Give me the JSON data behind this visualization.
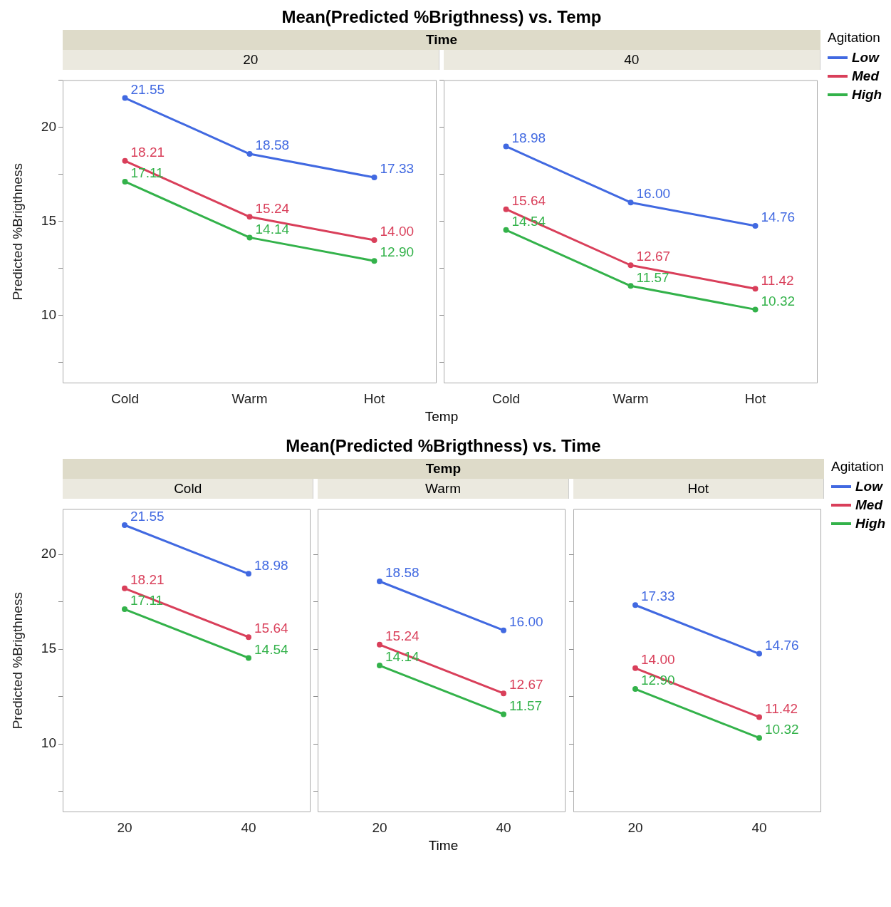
{
  "chart_data": [
    {
      "type": "line",
      "title": "Mean(Predicted %Brigthness) vs. Temp",
      "subtitle": "Time",
      "annotations": [
        "20"
      ],
      "xlabel": "Temp",
      "ylabel": "Predicted %Brigthness",
      "categories": [
        "Cold",
        "Warm",
        "Hot"
      ],
      "ylim": [
        6.4,
        22.5
      ],
      "yticks": [
        {
          "value": 7.5,
          "label": null
        },
        10,
        {
          "value": 12.5,
          "label": null
        },
        15,
        {
          "value": 17.5,
          "label": null
        },
        20,
        {
          "value": 22.5,
          "label": null
        }
      ],
      "marker": "circle",
      "series": [
        {
          "color": "#4169e1",
          "values": [
            21.55,
            18.58,
            17.33
          ],
          "value_labels": [
            "21.55",
            "18.58",
            "17.33"
          ]
        },
        {
          "color": "#d93f5a",
          "values": [
            18.21,
            15.24,
            14.0
          ],
          "value_labels": [
            "18.21",
            "15.24",
            "14.00"
          ]
        },
        {
          "color": "#33b24a",
          "values": [
            17.11,
            14.14,
            12.9
          ],
          "value_labels": [
            "17.11",
            "14.14",
            "12.90"
          ]
        }
      ]
    },
    {
      "type": "line",
      "annotations": [
        "40"
      ],
      "categories": [
        "Cold",
        "Warm",
        "Hot"
      ],
      "ylim": [
        6.4,
        22.5
      ],
      "yticks": [
        {
          "value": 7.5,
          "label": null
        },
        10,
        {
          "value": 12.5,
          "label": null
        },
        15,
        {
          "value": 17.5,
          "label": null
        },
        20,
        {
          "value": 22.5,
          "label": null
        }
      ],
      "tick_labels": "x",
      "marker": "circle",
      "legend": "right",
      "legend_title": "Agitation",
      "series": [
        {
          "name": "Low",
          "color": "#4169e1",
          "values": [
            18.98,
            16.0,
            14.76
          ],
          "value_labels": [
            "18.98",
            "16.00",
            "14.76"
          ]
        },
        {
          "name": "Med",
          "color": "#d93f5a",
          "values": [
            15.64,
            12.67,
            11.42
          ],
          "value_labels": [
            "15.64",
            "12.67",
            "11.42"
          ]
        },
        {
          "name": "High",
          "color": "#33b24a",
          "values": [
            14.54,
            11.57,
            10.32
          ],
          "value_labels": [
            "14.54",
            "11.57",
            "10.32"
          ]
        }
      ]
    },
    {
      "type": "line",
      "annotations": [
        "Cold"
      ],
      "ylabel": "Predicted %Brigthness",
      "categories": [
        "20",
        "40"
      ],
      "ylim": [
        6.4,
        22.4
      ],
      "yticks": [
        {
          "value": 7.5,
          "label": null
        },
        10,
        {
          "value": 12.5,
          "label": null
        },
        15,
        {
          "value": 17.5,
          "label": null
        },
        20
      ],
      "marker": "circle",
      "series": [
        {
          "color": "#4169e1",
          "values": [
            21.55,
            18.98
          ],
          "value_labels": [
            "21.55",
            "18.98"
          ]
        },
        {
          "color": "#d93f5a",
          "values": [
            18.21,
            15.64
          ],
          "value_labels": [
            "18.21",
            "15.64"
          ]
        },
        {
          "color": "#33b24a",
          "values": [
            17.11,
            14.54
          ],
          "value_labels": [
            "17.11",
            "14.54"
          ]
        }
      ]
    },
    {
      "type": "line",
      "title": "Mean(Predicted %Brigthness) vs. Time",
      "subtitle": "Temp",
      "xlabel": "Time",
      "annotations": [
        "Warm"
      ],
      "categories": [
        "20",
        "40"
      ],
      "ylim": [
        6.4,
        22.4
      ],
      "yticks": [
        {
          "value": 7.5,
          "label": null
        },
        10,
        {
          "value": 12.5,
          "label": null
        },
        15,
        {
          "value": 17.5,
          "label": null
        },
        20
      ],
      "tick_labels": "x",
      "marker": "circle",
      "series": [
        {
          "color": "#4169e1",
          "values": [
            18.58,
            16.0
          ],
          "value_labels": [
            "18.58",
            "16.00"
          ]
        },
        {
          "color": "#d93f5a",
          "values": [
            15.24,
            12.67
          ],
          "value_labels": [
            "15.24",
            "12.67"
          ]
        },
        {
          "color": "#33b24a",
          "values": [
            14.14,
            11.57
          ],
          "value_labels": [
            "14.14",
            "11.57"
          ]
        }
      ]
    },
    {
      "type": "line",
      "annotations": [
        "Hot"
      ],
      "categories": [
        "20",
        "40"
      ],
      "ylim": [
        6.4,
        22.4
      ],
      "yticks": [
        {
          "value": 7.5,
          "label": null
        },
        10,
        {
          "value": 12.5,
          "label": null
        },
        15,
        {
          "value": 17.5,
          "label": null
        },
        20
      ],
      "tick_labels": "x",
      "marker": "circle",
      "legend": "right",
      "legend_title": "Agitation",
      "series": [
        {
          "name": "Low",
          "color": "#4169e1",
          "values": [
            17.33,
            14.76
          ],
          "value_labels": [
            "17.33",
            "14.76"
          ]
        },
        {
          "name": "Med",
          "color": "#d93f5a",
          "values": [
            14.0,
            11.42
          ],
          "value_labels": [
            "14.00",
            "11.42"
          ]
        },
        {
          "name": "High",
          "color": "#33b24a",
          "values": [
            12.9,
            10.32
          ],
          "value_labels": [
            "12.90",
            "10.32"
          ]
        }
      ]
    }
  ]
}
